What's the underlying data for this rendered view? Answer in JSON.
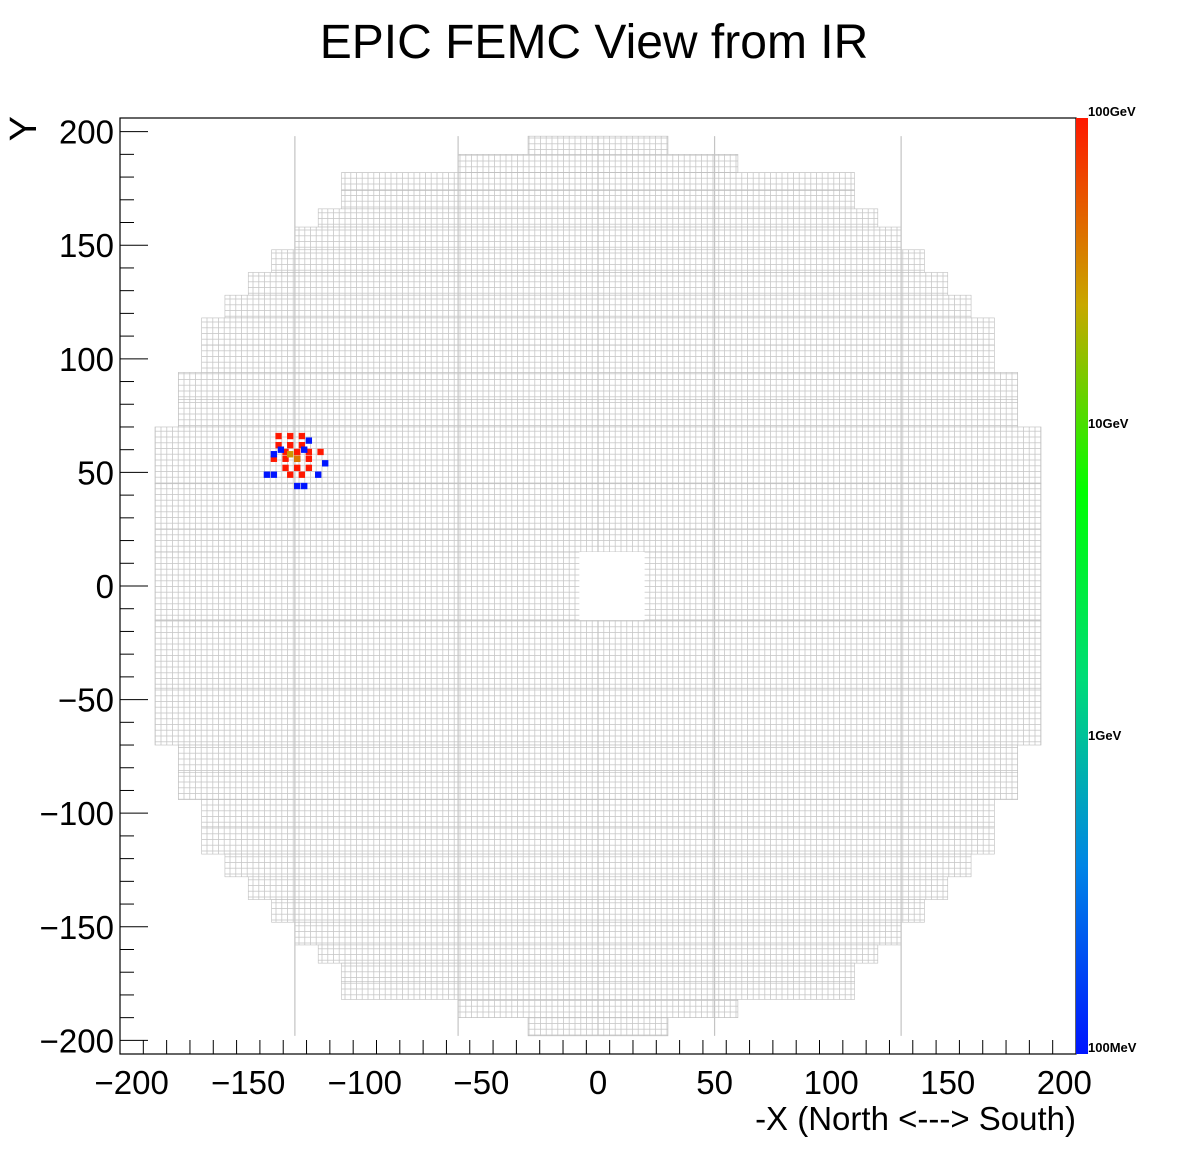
{
  "chart_data": {
    "type": "heatmap",
    "title": "EPIC FEMC View from IR",
    "xlabel": "-X (North <---> South)",
    "ylabel": "Y",
    "xlim": [
      -205,
      205
    ],
    "ylim": [
      -206,
      206
    ],
    "x_ticks": [
      -200,
      -150,
      -100,
      -50,
      0,
      50,
      100,
      150,
      200
    ],
    "x_tick_labels": [
      "−200",
      "−150",
      "−100",
      "−50",
      "0",
      "50",
      "100",
      "150",
      "200"
    ],
    "y_ticks": [
      200,
      150,
      100,
      50,
      0,
      -50,
      -100,
      -150,
      -200
    ],
    "y_tick_labels": [
      "200",
      "150",
      "100",
      "50",
      "0",
      "−50",
      "−100",
      "−150",
      "−200"
    ],
    "grid": false,
    "detector": {
      "cell_pitch": 2.5,
      "rows": [
        {
          "y": [
            190,
            198
          ],
          "x": [
            -30,
            30
          ]
        },
        {
          "y": [
            182,
            190
          ],
          "x": [
            -60,
            60
          ]
        },
        {
          "y": [
            174,
            182
          ],
          "x": [
            -110,
            110
          ]
        },
        {
          "y": [
            166,
            174
          ],
          "x": [
            -110,
            110
          ]
        },
        {
          "y": [
            158,
            166
          ],
          "x": [
            -120,
            120
          ]
        },
        {
          "y": [
            148,
            158
          ],
          "x": [
            -130,
            130
          ]
        },
        {
          "y": [
            138,
            148
          ],
          "x": [
            -140,
            140
          ]
        },
        {
          "y": [
            128,
            138
          ],
          "x": [
            -150,
            150
          ]
        },
        {
          "y": [
            118,
            128
          ],
          "x": [
            -160,
            160
          ]
        },
        {
          "y": [
            106,
            118
          ],
          "x": [
            -170,
            170
          ]
        },
        {
          "y": [
            94,
            106
          ],
          "x": [
            -170,
            170
          ]
        },
        {
          "y": [
            82,
            94
          ],
          "x": [
            -180,
            180
          ]
        },
        {
          "y": [
            70,
            82
          ],
          "x": [
            -180,
            180
          ]
        },
        {
          "y": [
            45,
            70
          ],
          "x": [
            -190,
            190
          ]
        },
        {
          "y": [
            15,
            45
          ],
          "x": [
            -190,
            190
          ]
        },
        {
          "y": [
            -15,
            15
          ],
          "x": [
            -190,
            190
          ]
        },
        {
          "y": [
            -45,
            -15
          ],
          "x": [
            -190,
            190
          ]
        },
        {
          "y": [
            -70,
            -45
          ],
          "x": [
            -190,
            190
          ]
        },
        {
          "y": [
            -82,
            -70
          ],
          "x": [
            -180,
            180
          ]
        },
        {
          "y": [
            -94,
            -82
          ],
          "x": [
            -180,
            180
          ]
        },
        {
          "y": [
            -106,
            -94
          ],
          "x": [
            -170,
            170
          ]
        },
        {
          "y": [
            -118,
            -106
          ],
          "x": [
            -170,
            170
          ]
        },
        {
          "y": [
            -128,
            -118
          ],
          "x": [
            -160,
            160
          ]
        },
        {
          "y": [
            -138,
            -128
          ],
          "x": [
            -150,
            150
          ]
        },
        {
          "y": [
            -148,
            -138
          ],
          "x": [
            -140,
            140
          ]
        },
        {
          "y": [
            -158,
            -148
          ],
          "x": [
            -130,
            130
          ]
        },
        {
          "y": [
            -166,
            -158
          ],
          "x": [
            -120,
            120
          ]
        },
        {
          "y": [
            -174,
            -166
          ],
          "x": [
            -110,
            110
          ]
        },
        {
          "y": [
            -182,
            -174
          ],
          "x": [
            -110,
            110
          ]
        },
        {
          "y": [
            -190,
            -182
          ],
          "x": [
            -60,
            60
          ]
        },
        {
          "y": [
            -198,
            -190
          ],
          "x": [
            -30,
            30
          ]
        }
      ],
      "hole": {
        "x": [
          -8,
          20
        ],
        "y": [
          -15,
          15
        ]
      }
    },
    "hits": [
      {
        "x": -137,
        "y": 66,
        "e": 100
      },
      {
        "x": -132,
        "y": 66,
        "e": 100
      },
      {
        "x": -127,
        "y": 66,
        "e": 100
      },
      {
        "x": -137,
        "y": 62,
        "e": 100
      },
      {
        "x": -132,
        "y": 62,
        "e": 100
      },
      {
        "x": -127,
        "y": 62,
        "e": 100
      },
      {
        "x": -134,
        "y": 59,
        "e": 100
      },
      {
        "x": -129,
        "y": 59,
        "e": 100
      },
      {
        "x": -124,
        "y": 59,
        "e": 100
      },
      {
        "x": -119,
        "y": 59,
        "e": 100
      },
      {
        "x": -139,
        "y": 56,
        "e": 100
      },
      {
        "x": -134,
        "y": 56,
        "e": 100
      },
      {
        "x": -129,
        "y": 56,
        "e": 100
      },
      {
        "x": -124,
        "y": 56,
        "e": 100
      },
      {
        "x": -134,
        "y": 52,
        "e": 100
      },
      {
        "x": -129,
        "y": 52,
        "e": 100
      },
      {
        "x": -124,
        "y": 52,
        "e": 100
      },
      {
        "x": -132,
        "y": 49,
        "e": 100
      },
      {
        "x": -127,
        "y": 49,
        "e": 100
      },
      {
        "x": -129,
        "y": 56,
        "e": 40
      },
      {
        "x": -132,
        "y": 58,
        "e": 30
      },
      {
        "x": -142,
        "y": 49,
        "e": 0.1
      },
      {
        "x": -139,
        "y": 49,
        "e": 0.1
      },
      {
        "x": -129,
        "y": 44,
        "e": 0.1
      },
      {
        "x": -126,
        "y": 44,
        "e": 0.1
      },
      {
        "x": -117,
        "y": 54,
        "e": 0.1
      },
      {
        "x": -120,
        "y": 49,
        "e": 0.1
      },
      {
        "x": -139,
        "y": 58,
        "e": 0.1
      },
      {
        "x": -136,
        "y": 60,
        "e": 0.1
      },
      {
        "x": -126,
        "y": 60,
        "e": 0.1
      },
      {
        "x": -124,
        "y": 64,
        "e": 0.1
      }
    ],
    "colorbar": {
      "scale": "log",
      "range": [
        0.1,
        100
      ],
      "labels": [
        {
          "value": 100,
          "text": "100GeV"
        },
        {
          "value": 10,
          "text": "10GeV"
        },
        {
          "value": 1,
          "text": "1GeV"
        },
        {
          "value": 0.1,
          "text": "100MeV"
        }
      ],
      "colors": [
        "#0015ff",
        "#0085e6",
        "#00dc78",
        "#00ff00",
        "#c8a800",
        "#ff1800"
      ]
    }
  }
}
